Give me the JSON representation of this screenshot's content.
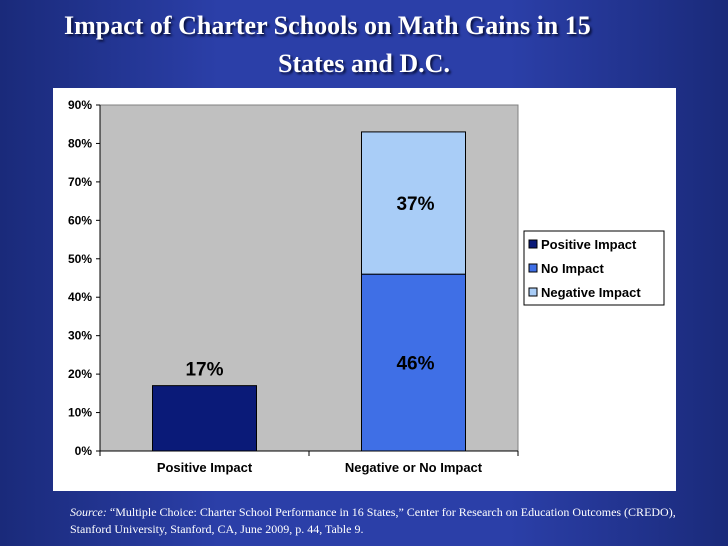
{
  "slide": {
    "title_line1": "Impact of Charter Schools on Math Gains in 15",
    "title_line2": "States and D.C."
  },
  "source": {
    "label": "Source:",
    "text": "“Multiple Choice: Charter School Performance in 16 States,” Center for Research on Education Outcomes (CREDO), Stanford University, Stanford, CA, June 2009, p. 44, Table 9."
  },
  "chart_data": {
    "type": "bar",
    "stacked": true,
    "categories": [
      "Positive Impact",
      "Negative or No Impact"
    ],
    "series": [
      {
        "name": "Positive Impact",
        "values": [
          17,
          0
        ],
        "labels": [
          "17%",
          ""
        ],
        "color": "#0a1a78"
      },
      {
        "name": "No Impact",
        "values": [
          0,
          46
        ],
        "labels": [
          "",
          "46%"
        ],
        "color": "#3f6fe6"
      },
      {
        "name": "Negative Impact",
        "values": [
          0,
          37
        ],
        "labels": [
          "",
          "37%"
        ],
        "color": "#a9cdf7"
      }
    ],
    "ylim": [
      0,
      90
    ],
    "ytick_labels": [
      "0%",
      "10%",
      "20%",
      "30%",
      "40%",
      "50%",
      "60%",
      "70%",
      "80%",
      "90%"
    ],
    "plot_background": "#c0c0c0",
    "grid": false,
    "legend_position": "right"
  }
}
